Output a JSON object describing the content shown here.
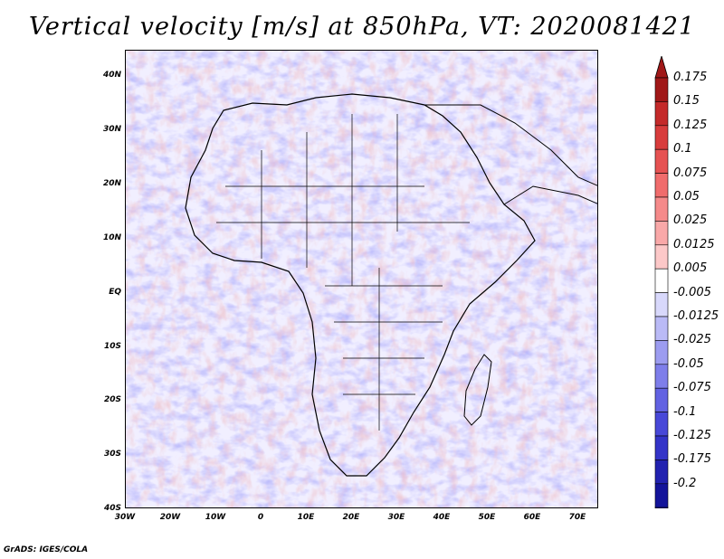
{
  "title": "Vertical velocity [m/s] at 850hPa, VT: 2020081421",
  "credit": "GrADS: IGES/COLA",
  "axes": {
    "lat_ticks": [
      "40N",
      "30N",
      "20N",
      "10N",
      "EQ",
      "10S",
      "20S",
      "30S",
      "40S"
    ],
    "lon_ticks": [
      "30W",
      "20W",
      "10W",
      "0",
      "10E",
      "20E",
      "30E",
      "40E",
      "50E",
      "60E",
      "70E"
    ]
  },
  "colorbar": {
    "labels": [
      "0.175",
      "0.15",
      "0.125",
      "0.1",
      "0.075",
      "0.05",
      "0.025",
      "0.0125",
      "0.005",
      "-0.005",
      "-0.0125",
      "-0.025",
      "-0.05",
      "-0.075",
      "-0.1",
      "-0.125",
      "-0.175",
      "-0.2"
    ],
    "colors": [
      "#a01818",
      "#c42a2a",
      "#d83c3c",
      "#e65252",
      "#f06c6c",
      "#f58a8a",
      "#f9a8a8",
      "#fcc8c8",
      "#ffffff",
      "#d8d8fb",
      "#babaf6",
      "#9c9cf0",
      "#7e7eea",
      "#6262e2",
      "#4848d8",
      "#3434c8",
      "#2222b0",
      "#14149a"
    ],
    "top_arrow_color": "#a01818",
    "bottom_arrow_color": "#2a0fa8"
  }
}
